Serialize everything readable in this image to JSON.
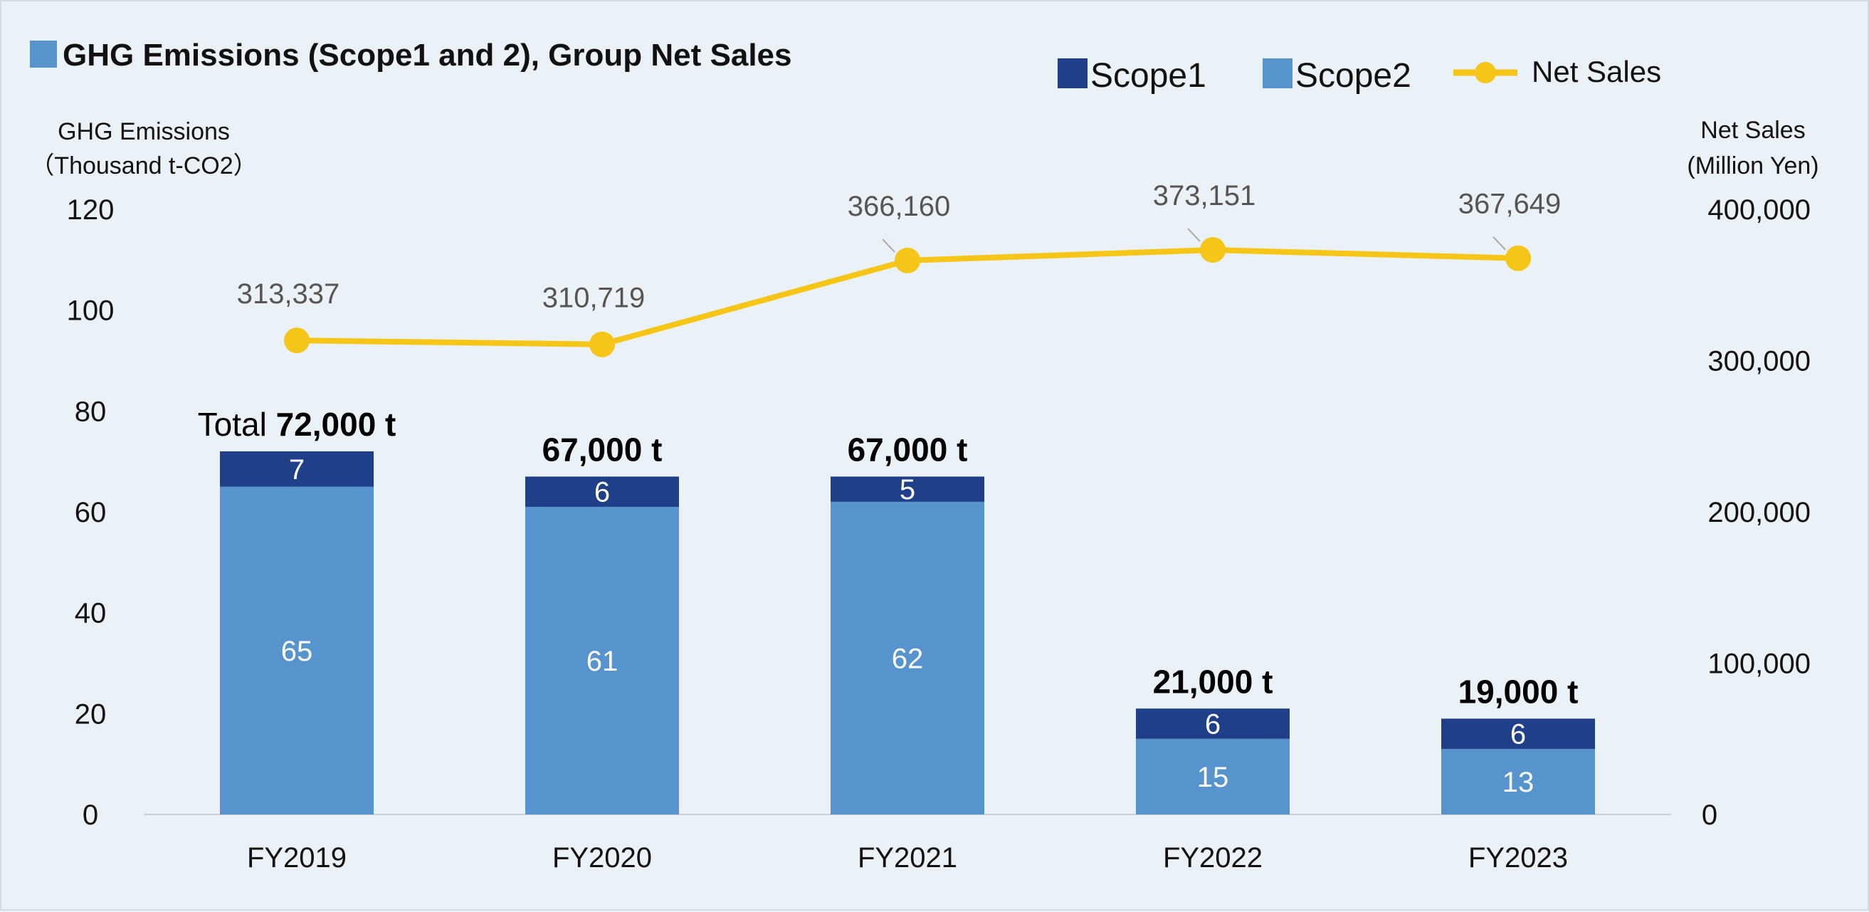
{
  "colors": {
    "scope1": "#1f3f88",
    "scope2": "#5793cc",
    "net_sales": "#f5c518",
    "background": "#eaf1f7"
  },
  "chart_data": {
    "type": "bar",
    "stacked": true,
    "title": "GHG Emissions (Scope1 and 2), Group Net Sales",
    "categories": [
      "FY2019",
      "FY2020",
      "FY2021",
      "FY2022",
      "FY2023"
    ],
    "series": [
      {
        "name": "Scope1",
        "type": "bar",
        "axis": "left",
        "values": [
          7,
          6,
          5,
          6,
          6
        ]
      },
      {
        "name": "Scope2",
        "type": "bar",
        "axis": "left",
        "values": [
          65,
          61,
          62,
          15,
          13
        ]
      },
      {
        "name": "Net Sales",
        "type": "line",
        "axis": "right",
        "values": [
          313337,
          310719,
          366160,
          373151,
          367649
        ]
      }
    ],
    "totals": [
      "72,000 t",
      "67,000 t",
      "67,000 t",
      "21,000 t",
      "19,000 t"
    ],
    "totals_prefix": "Total",
    "net_sales_labels": [
      "313,337",
      "310,719",
      "366,160",
      "373,151",
      "367,649"
    ],
    "scope_labels": {
      "scope1": [
        "7",
        "6",
        "5",
        "6",
        "6"
      ],
      "scope2": [
        "65",
        "61",
        "62",
        "15",
        "13"
      ]
    },
    "left_axis": {
      "label_line1": "GHG Emissions",
      "label_line2": "（Thousand t-CO2）",
      "ylim": [
        0,
        120
      ],
      "ticks": [
        "0",
        "20",
        "40",
        "60",
        "80",
        "100",
        "120"
      ]
    },
    "right_axis": {
      "label_line1": "Net Sales",
      "label_line2": "(Million Yen)",
      "ylim": [
        0,
        400000
      ],
      "ticks": [
        "0",
        "100,000",
        "200,000",
        "300,000",
        "400,000"
      ]
    },
    "legend": {
      "position": "top-right",
      "items": [
        "Scope1",
        "Scope2",
        "Net Sales"
      ]
    },
    "grid": false
  }
}
